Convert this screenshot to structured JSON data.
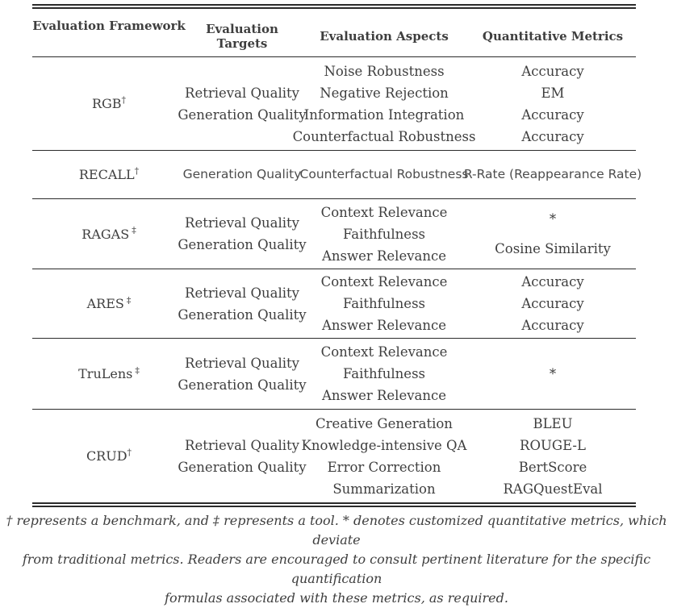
{
  "table": {
    "headers": [
      "Evaluation Framework",
      "Evaluation Targets",
      "Evaluation Aspects",
      "Quantitative Metrics"
    ],
    "rows": [
      {
        "framework": "RGB",
        "marker": "†",
        "targets": [
          "Retrieval Quality",
          "Generation Quality"
        ],
        "aspects": [
          "Noise Robustness",
          "Negative Rejection",
          "Information Integration",
          "Counterfactual Robustness"
        ],
        "metrics": [
          "Accuracy",
          "EM",
          "Accuracy",
          "Accuracy"
        ]
      },
      {
        "framework": "RECALL",
        "marker": "†",
        "targets": [
          "Generation Quality"
        ],
        "aspects": [
          "Counterfactual Robustness"
        ],
        "metrics": [
          "R-Rate (Reappearance Rate)"
        ]
      },
      {
        "framework": "RAGAS",
        "marker": "‡",
        "targets": [
          "Retrieval Quality",
          "Generation Quality"
        ],
        "aspects": [
          "Context Relevance",
          "Faithfulness",
          "Answer Relevance"
        ],
        "metrics": [
          "*",
          "Cosine Similarity"
        ]
      },
      {
        "framework": "ARES",
        "marker": "‡",
        "targets": [
          "Retrieval Quality",
          "Generation Quality"
        ],
        "aspects": [
          "Context Relevance",
          "Faithfulness",
          "Answer Relevance"
        ],
        "metrics": [
          "Accuracy",
          "Accuracy",
          "Accuracy"
        ]
      },
      {
        "framework": "TruLens",
        "marker": "‡",
        "targets": [
          "Retrieval Quality",
          "Generation Quality"
        ],
        "aspects": [
          "Context Relevance",
          "Faithfulness",
          "Answer Relevance"
        ],
        "metrics": [
          "*"
        ]
      },
      {
        "framework": "CRUD",
        "marker": "†",
        "targets": [
          "Retrieval Quality",
          "Generation Quality"
        ],
        "aspects": [
          "Creative Generation",
          "Knowledge-intensive QA",
          "Error Correction",
          "Summarization"
        ],
        "metrics": [
          "BLEU",
          "ROUGE-L",
          "BertScore",
          "RAGQuestEval"
        ]
      }
    ]
  },
  "footnote": {
    "lines": [
      "† represents a benchmark, and ‡ represents a tool. * denotes customized quantitative metrics, which deviate",
      "from traditional metrics. Readers are encouraged to consult pertinent literature for the specific quantification",
      "formulas associated with these metrics, as required."
    ]
  }
}
